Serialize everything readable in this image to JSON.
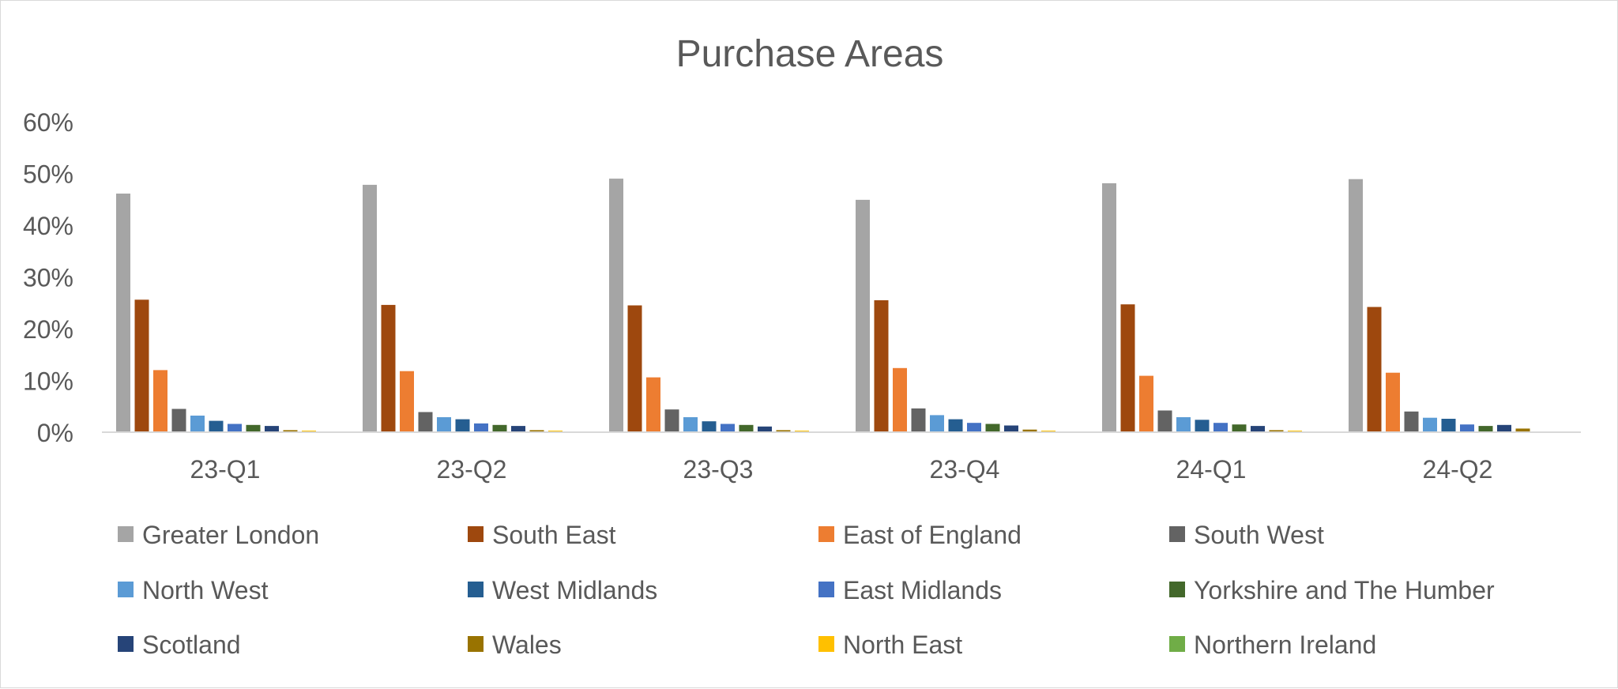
{
  "chart_data": {
    "type": "bar",
    "title": "Purchase Areas",
    "xlabel": "",
    "ylabel": "",
    "ylim": [
      0,
      0.6
    ],
    "yticks": [
      "0%",
      "10%",
      "20%",
      "30%",
      "40%",
      "50%",
      "60%"
    ],
    "y_tick_values": [
      0,
      0.1,
      0.2,
      0.3,
      0.4,
      0.5,
      0.6
    ],
    "grid": false,
    "legend_position": "bottom",
    "categories": [
      "23-Q1",
      "23-Q2",
      "23-Q3",
      "23-Q4",
      "24-Q1",
      "24-Q2"
    ],
    "series": [
      {
        "name": "Greater London",
        "color": "#a5a5a5",
        "values": [
          0.461,
          0.478,
          0.49,
          0.449,
          0.481,
          0.489
        ]
      },
      {
        "name": "South East",
        "color": "#9e480e",
        "values": [
          0.256,
          0.246,
          0.245,
          0.255,
          0.247,
          0.242
        ]
      },
      {
        "name": "East of England",
        "color": "#ed7d31",
        "values": [
          0.12,
          0.118,
          0.106,
          0.124,
          0.109,
          0.115
        ]
      },
      {
        "name": "South West",
        "color": "#636363",
        "values": [
          0.045,
          0.039,
          0.044,
          0.046,
          0.042,
          0.04
        ]
      },
      {
        "name": "North West",
        "color": "#5b9bd5",
        "values": [
          0.032,
          0.029,
          0.029,
          0.033,
          0.029,
          0.028
        ]
      },
      {
        "name": "West Midlands",
        "color": "#255e91",
        "values": [
          0.022,
          0.025,
          0.021,
          0.025,
          0.024,
          0.026
        ]
      },
      {
        "name": "East Midlands",
        "color": "#4472c4",
        "values": [
          0.016,
          0.017,
          0.016,
          0.018,
          0.018,
          0.015
        ]
      },
      {
        "name": "Yorkshire and The Humber",
        "color": "#43682b",
        "values": [
          0.014,
          0.014,
          0.014,
          0.016,
          0.015,
          0.012
        ]
      },
      {
        "name": "Scotland",
        "color": "#264478",
        "values": [
          0.012,
          0.012,
          0.011,
          0.013,
          0.012,
          0.014
        ]
      },
      {
        "name": "Wales",
        "color": "#997300",
        "values": [
          0.004,
          0.004,
          0.004,
          0.005,
          0.004,
          0.007
        ]
      },
      {
        "name": "North East",
        "color": "#ffc000",
        "values": [
          0.003,
          0.003,
          0.003,
          0.003,
          0.003,
          0.001
        ]
      },
      {
        "name": "Northern Ireland",
        "color": "#70ad47",
        "values": [
          0.0,
          0.0,
          0.001,
          0.0,
          0.0,
          0.0
        ]
      }
    ]
  }
}
